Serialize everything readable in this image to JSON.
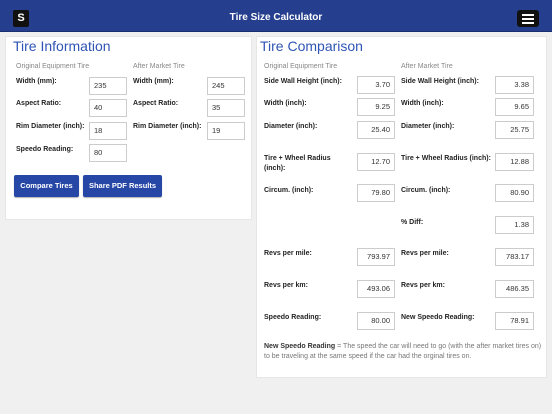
{
  "app": {
    "logo_letter": "S",
    "title": "Tire Size Calculator"
  },
  "tire_info": {
    "heading": "Tire Information",
    "oe_sub": "Original Equipment Tire",
    "am_sub": "After Market Tire",
    "oe": [
      {
        "label": "Width (mm):",
        "value": "235"
      },
      {
        "label": "Aspect Ratio:",
        "value": "40"
      },
      {
        "label": "Rim Diameter (inch):",
        "value": "18"
      },
      {
        "label": "Speedo Reading:",
        "value": "80"
      }
    ],
    "am": [
      {
        "label": "Width (mm):",
        "value": "245"
      },
      {
        "label": "Aspect Ratio:",
        "value": "35"
      },
      {
        "label": "Rim Diameter (inch):",
        "value": "19"
      }
    ],
    "compare_button": "Compare Tires",
    "share_button": "Share PDF Results"
  },
  "comparison": {
    "heading": "Tire Comparison",
    "oe_sub": "Original Equipment Tire",
    "am_sub": "After Market Tire",
    "oe": [
      {
        "label": "Side Wall Height (inch):",
        "value": "3.70"
      },
      {
        "label": "Width (inch):",
        "value": "9.25"
      },
      {
        "label": "Diameter (inch):",
        "value": "25.40"
      },
      {
        "label": "Tire + Wheel Radius (inch):",
        "value": "12.70"
      },
      {
        "label": "Circum. (inch):",
        "value": "79.80"
      },
      {
        "label": "Revs per mile:",
        "value": "793.97"
      },
      {
        "label": "Revs per km:",
        "value": "493.06"
      },
      {
        "label": "Speedo Reading:",
        "value": "80.00"
      }
    ],
    "am": [
      {
        "label": "Side Wall Height (inch):",
        "value": "3.38"
      },
      {
        "label": "Width (inch):",
        "value": "9.65"
      },
      {
        "label": "Diameter (inch):",
        "value": "25.75"
      },
      {
        "label": "Tire + Wheel Radius (inch):",
        "value": "12.88"
      },
      {
        "label": "Circum. (inch):",
        "value": "80.90"
      },
      {
        "label": "% Diff:",
        "value": "1.38"
      },
      {
        "label": "Revs per mile:",
        "value": "783.17"
      },
      {
        "label": "Revs per km:",
        "value": "486.35"
      },
      {
        "label": "New Speedo Reading:",
        "value": "78.91"
      }
    ],
    "note_term": "New Speedo Reading",
    "note_text": " = The speed the car will need to go (with the after market tires on) to be traveling at the same speed if the car had the orginal tires on."
  },
  "colors": {
    "header": "#253f8e",
    "accent": "#2f55b4",
    "button": "#2747a6"
  },
  "icons": {
    "menu": "hamburger-menu-icon"
  }
}
